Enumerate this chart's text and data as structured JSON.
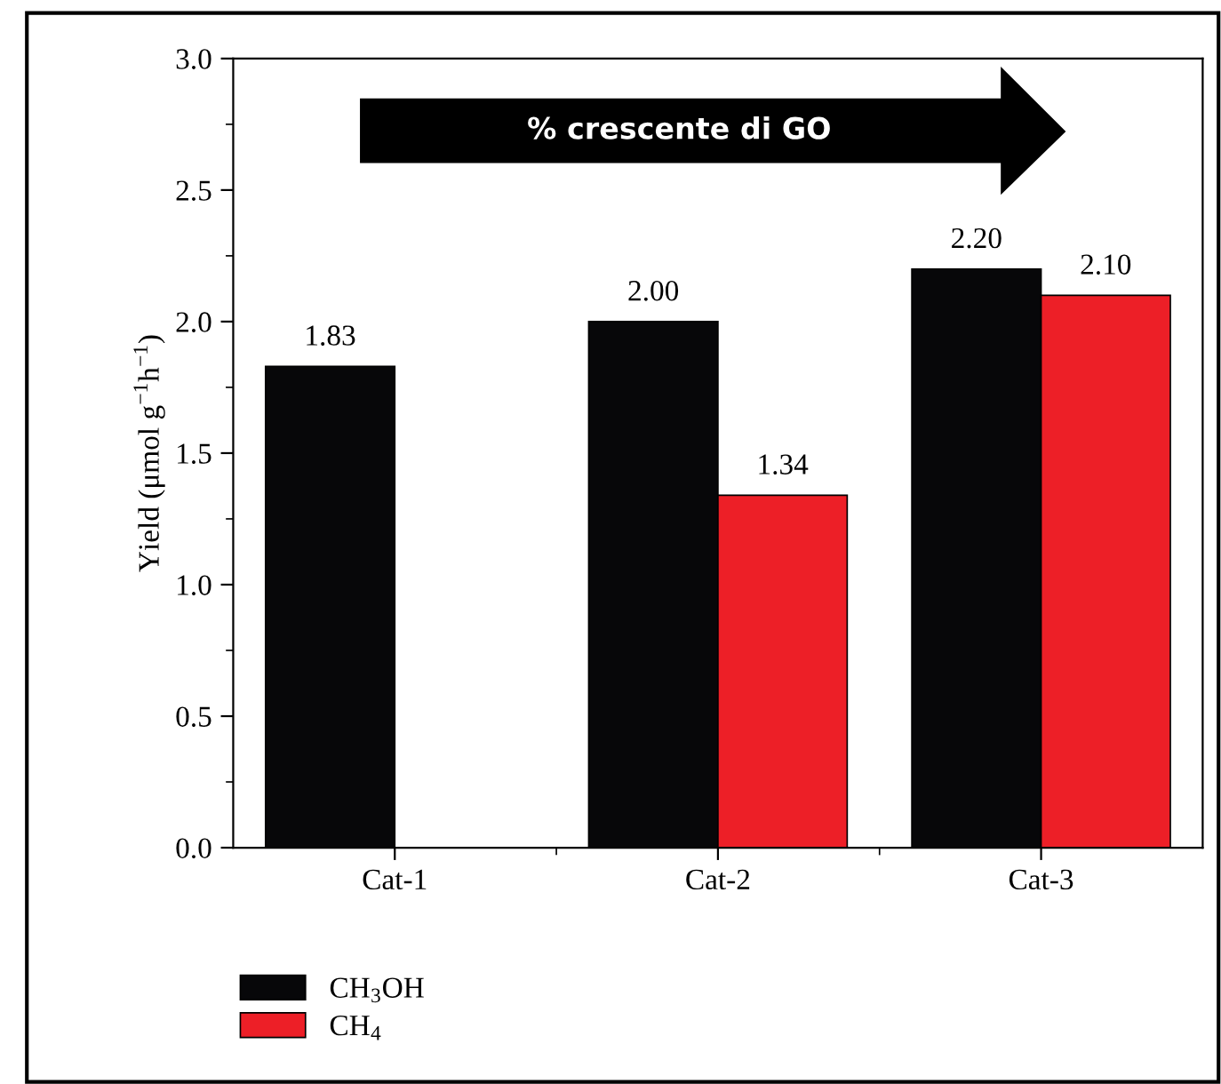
{
  "chart_data": {
    "type": "bar",
    "ylabel": "Yield (μmol g$^{−1}$h$^{−1}$)",
    "categories": [
      "Cat-1",
      "Cat-2",
      "Cat-3"
    ],
    "series": [
      {
        "name": "CH$_{3}$OH",
        "color": "#070709",
        "values": [
          1.83,
          2.0,
          2.2
        ],
        "value_labels": [
          "1.83",
          "2.00",
          "2.20"
        ]
      },
      {
        "name": "CH$_{4}$",
        "color": "#ed1f27",
        "values": [
          null,
          1.34,
          2.1
        ],
        "value_labels": [
          null,
          "1.34",
          "2.10"
        ]
      }
    ],
    "ylim": [
      0,
      3.0
    ],
    "yticks": [
      {
        "value": 0,
        "label": "0.0"
      },
      {
        "value": 0.5,
        "label": "0.5"
      },
      {
        "value": 1.0,
        "label": "1.0"
      },
      {
        "value": 1.5,
        "label": "1.5"
      },
      {
        "value": 2.0,
        "label": "2.0"
      },
      {
        "value": 2.5,
        "label": "2.5"
      },
      {
        "value": 3.0,
        "label": "3.0"
      }
    ],
    "annotations": [
      "% crescente di GO"
    ],
    "legend": "bottom left",
    "grid": false
  }
}
